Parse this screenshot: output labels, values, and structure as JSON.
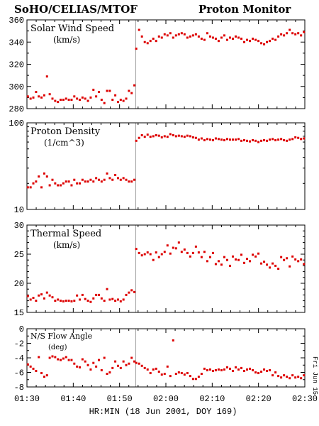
{
  "header": {
    "left_title": "SoHO/CELIAS/MTOF",
    "right_title": "Proton Monitor",
    "right_margin_label": "Fri Jun 15"
  },
  "x_axis": {
    "label": "HR:MIN (18 Jun 2001, DOY 169)",
    "ticks": [
      "01:30",
      "01:40",
      "01:50",
      "02:00",
      "02:10",
      "02:20",
      "02:30"
    ],
    "range_min": [
      90,
      150
    ]
  },
  "colors": {
    "points": "#dd0000",
    "axis": "#000000",
    "event_line": "#a0a0a0"
  },
  "event_marker_min": 113.5,
  "chart_data": [
    {
      "id": "speed",
      "type": "scatter",
      "title": "Solar Wind Speed",
      "unit": "(km/s)",
      "ylim": [
        280,
        360
      ],
      "y_scale": "linear",
      "yticks": [
        "360",
        "340",
        "320",
        "300",
        "280"
      ],
      "pre": [
        291,
        289,
        290,
        295,
        291,
        290,
        292,
        309,
        293,
        289,
        287,
        286,
        288,
        288,
        289,
        288,
        288,
        291,
        289,
        288,
        290,
        289,
        287,
        290,
        297,
        291,
        295,
        288,
        285,
        296,
        296,
        288,
        292,
        286,
        288,
        287,
        289,
        296,
        294,
        301
      ],
      "post": [
        334,
        351,
        345,
        340,
        339,
        341,
        343,
        341,
        345,
        344,
        347,
        346,
        348,
        344,
        346,
        347,
        348,
        347,
        344,
        345,
        346,
        347,
        345,
        343,
        342,
        348,
        345,
        344,
        343,
        341,
        344,
        346,
        342,
        344,
        343,
        345,
        344,
        343,
        340,
        342,
        341,
        343,
        342,
        341,
        339,
        338,
        340,
        341,
        343,
        342,
        345,
        347,
        346,
        348,
        351,
        348,
        347,
        348,
        346,
        349
      ]
    },
    {
      "id": "density",
      "type": "scatter",
      "title": "Proton Density",
      "unit": "(1/cm^3)",
      "ylim": [
        10,
        100
      ],
      "y_scale": "log",
      "yticks": [
        "100",
        "10"
      ],
      "pre": [
        18,
        18,
        20,
        21,
        24,
        18,
        26,
        24,
        19,
        22,
        20,
        19,
        19,
        20,
        21,
        21,
        19,
        22,
        20,
        20,
        22,
        21,
        21,
        22,
        21,
        23,
        22,
        21,
        22,
        26,
        23,
        22,
        25,
        23,
        22,
        23,
        22,
        21,
        21,
        22
      ],
      "post": [
        62,
        67,
        72,
        69,
        73,
        69,
        70,
        72,
        71,
        68,
        70,
        69,
        74,
        72,
        70,
        71,
        70,
        69,
        71,
        70,
        68,
        67,
        64,
        66,
        63,
        65,
        64,
        63,
        66,
        65,
        64,
        63,
        65,
        64,
        64,
        64,
        65,
        62,
        63,
        62,
        61,
        63,
        62,
        60,
        62,
        63,
        62,
        64,
        65,
        63,
        64,
        65,
        63,
        62,
        64,
        65,
        68,
        67,
        65,
        66
      ]
    },
    {
      "id": "thermal",
      "type": "scatter",
      "title": "Thermal Speed",
      "unit": "(km/s)",
      "ylim": [
        15,
        30
      ],
      "y_scale": "linear",
      "yticks": [
        "30",
        "25",
        "20",
        "15"
      ],
      "pre": [
        17.8,
        17.2,
        17.5,
        17.0,
        17.9,
        18.1,
        17.4,
        18.4,
        17.9,
        17.6,
        17.0,
        17.2,
        17.0,
        16.9,
        17.0,
        17.0,
        16.9,
        17.0,
        17.9,
        17.2,
        18.0,
        17.3,
        17.0,
        16.8,
        17.4,
        18.0,
        18.0,
        17.4,
        17.0,
        19.0,
        17.2,
        17.3,
        17.0,
        17.2,
        16.9,
        17.2,
        18.0,
        18.4,
        18.8,
        18.5
      ],
      "post": [
        25.9,
        25.2,
        24.8,
        25.0,
        25.3,
        25.0,
        24.0,
        25.3,
        24.5,
        25.0,
        25.4,
        26.5,
        25.1,
        26.1,
        26.0,
        27.0,
        25.4,
        25.8,
        25.2,
        24.6,
        25.2,
        26.3,
        25.3,
        24.5,
        25.4,
        23.8,
        24.5,
        25.2,
        23.3,
        23.8,
        23.2,
        24.5,
        24.0,
        23.0,
        24.6,
        24.1,
        24.0,
        24.9,
        23.5,
        24.2,
        23.8,
        24.9,
        24.6,
        25.1,
        23.4,
        23.7,
        23.2,
        22.7,
        23.4,
        23.0,
        22.5,
        24.5,
        24.0,
        24.3,
        22.9,
        24.6,
        24.1,
        23.8,
        24.1,
        23.3
      ]
    },
    {
      "id": "angle",
      "type": "scatter",
      "title": "N/S Flow Angle",
      "unit": "(deg)",
      "ylim": [
        -8,
        0
      ],
      "y_scale": "linear",
      "yticks": [
        "0",
        "-2",
        "-4",
        "-6",
        "-8"
      ],
      "pre": [
        -4.9,
        -5.2,
        -5.5,
        -5.8,
        -3.9,
        -6.1,
        -6.6,
        -6.4,
        -4.0,
        -3.8,
        -3.9,
        -4.2,
        -4.3,
        -4.1,
        -3.9,
        -4.3,
        -4.3,
        -4.8,
        -5.2,
        -5.3,
        -4.2,
        -4.5,
        -5.0,
        -5.6,
        -4.7,
        -5.2,
        -4.3,
        -5.7,
        -4.0,
        -6.2,
        -6.0,
        -5.4,
        -4.5,
        -5.1,
        -5.4,
        -4.5,
        -5.0,
        -4.8,
        -4.0,
        -4.5
      ],
      "post": [
        -4.7,
        -4.8,
        -5.1,
        -5.4,
        -5.6,
        -6.1,
        -5.6,
        -5.5,
        -5.9,
        -6.3,
        -6.2,
        -5.2,
        -6.5,
        -1.6,
        -6.2,
        -6.0,
        -6.1,
        -6.3,
        -6.1,
        -6.5,
        -6.9,
        -6.9,
        -6.6,
        -6.2,
        -5.5,
        -5.7,
        -5.6,
        -5.8,
        -5.7,
        -5.6,
        -5.7,
        -5.6,
        -5.3,
        -5.5,
        -5.8,
        -5.3,
        -5.6,
        -5.4,
        -5.8,
        -5.6,
        -5.5,
        -5.7,
        -6.0,
        -6.1,
        -5.9,
        -5.6,
        -5.8,
        -5.7,
        -6.4,
        -6.0,
        -6.5,
        -6.7,
        -6.4,
        -6.6,
        -6.8,
        -6.4,
        -6.7,
        -6.6,
        -6.8,
        -6.4
      ]
    }
  ]
}
